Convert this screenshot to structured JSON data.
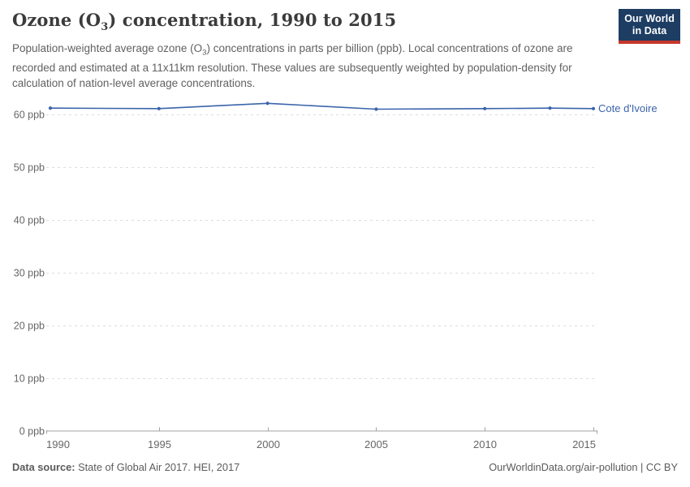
{
  "logo": {
    "line1": "Our World",
    "line2": "in Data"
  },
  "header": {
    "title_pre": "Ozone (O",
    "title_sub": "3",
    "title_post": ") concentration, 1990 to 2015",
    "subtitle_pre": "Population-weighted average ozone (O",
    "subtitle_sub": "3",
    "subtitle_post": ") concentrations in parts per billion (ppb). Local concentrations of ozone are recorded and estimated at a 11x11km resolution. These values are subsequently weighted by population-density for calculation of nation-level average concentrations."
  },
  "chart_data": {
    "type": "line",
    "title": "Ozone (O₃) concentration, 1990 to 2015",
    "x": [
      1990,
      1995,
      2000,
      2005,
      2010,
      2013,
      2015
    ],
    "series": [
      {
        "name": "Cote d'Ivoire",
        "color": "#3a64a9",
        "values": [
          61.2,
          61.1,
          62.1,
          61.0,
          61.1,
          61.2,
          61.1
        ]
      }
    ],
    "xlabel": "",
    "ylabel": "ppb",
    "xlim": [
      1990,
      2015
    ],
    "ylim": [
      0,
      60
    ],
    "yticks": [
      0,
      10,
      20,
      30,
      40,
      50,
      60
    ],
    "ytick_labels": [
      "0 ppb",
      "10 ppb",
      "20 ppb",
      "30 ppb",
      "40 ppb",
      "50 ppb",
      "60 ppb"
    ],
    "xticks": [
      1990,
      1995,
      2000,
      2005,
      2010,
      2015
    ],
    "grid": "horizontal-dashed",
    "legend_position": "right-of-line-end"
  },
  "footer": {
    "source_label": "Data source:",
    "source_text": " State of Global Air 2017. HEI, 2017",
    "right_text": "OurWorldinData.org/air-pollution | CC BY"
  },
  "colors": {
    "accent_line": "#3a64a9",
    "logo_bg": "#1d3d63",
    "logo_bar": "#c5372c",
    "grid": "#dddddd",
    "axis": "#a3a3a3",
    "tick_text": "#666666",
    "muted_text": "#616161"
  }
}
